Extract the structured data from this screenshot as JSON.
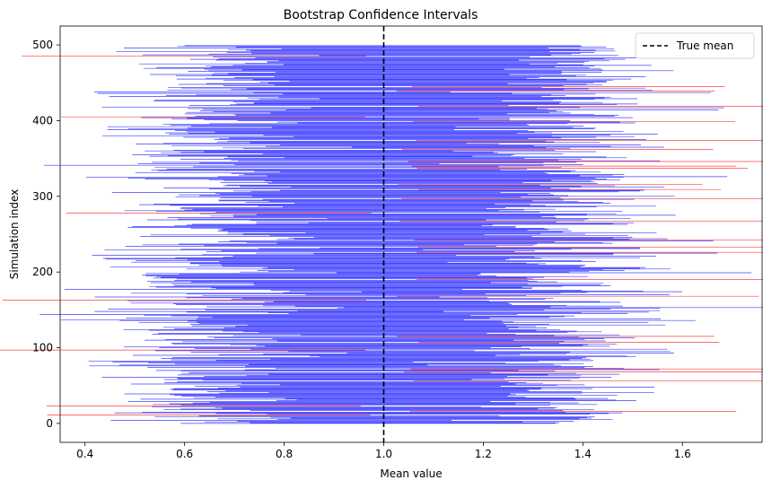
{
  "chart_data": {
    "type": "line",
    "orientation": "horizontal-intervals",
    "title": "Bootstrap Confidence Intervals",
    "xlabel": "Mean value",
    "ylabel": "Simulation index",
    "xlim": [
      0.35,
      1.76
    ],
    "ylim": [
      -25,
      525
    ],
    "x_ticks": [
      "0.4",
      "0.6",
      "0.8",
      "1.0",
      "1.2",
      "1.4",
      "1.6"
    ],
    "y_ticks": [
      "0",
      "100",
      "200",
      "300",
      "400",
      "500"
    ],
    "true_mean": 1.0,
    "n_intervals": 500,
    "covering_color": "#0000ff",
    "miss_color": "#ff0000",
    "true_mean_color": "#000000",
    "legend": {
      "entries": [
        "True mean"
      ],
      "placement": "top-right"
    },
    "grid": false
  }
}
